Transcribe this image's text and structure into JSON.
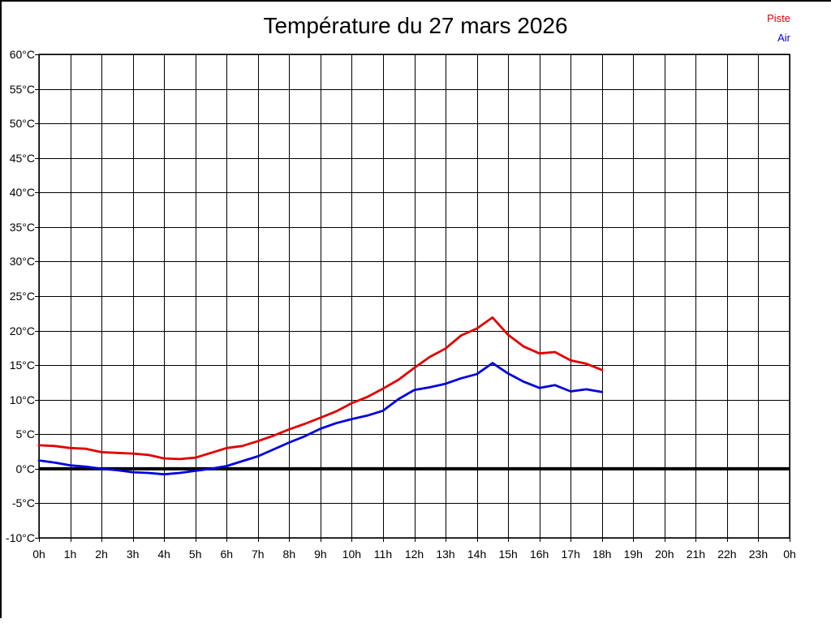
{
  "chart_data": {
    "type": "line",
    "title": "Température du 27 mars 2026",
    "xlim": [
      0,
      24
    ],
    "ylim": [
      -10,
      60
    ],
    "y_tick_step": 5,
    "grid": true,
    "zero_line": true,
    "legend_position": "top-right",
    "x_tick_labels": [
      "0h",
      "1h",
      "2h",
      "3h",
      "4h",
      "5h",
      "6h",
      "7h",
      "8h",
      "9h",
      "10h",
      "11h",
      "12h",
      "13h",
      "14h",
      "15h",
      "16h",
      "17h",
      "18h",
      "19h",
      "20h",
      "21h",
      "22h",
      "23h",
      "0h"
    ],
    "y_tick_labels": [
      "60°C",
      "55°C",
      "50°C",
      "45°C",
      "40°C",
      "35°C",
      "30°C",
      "25°C",
      "20°C",
      "15°C",
      "10°C",
      "5°C",
      "0°C",
      "-5°C",
      "-10°C"
    ],
    "legend": [
      {
        "label": "Piste",
        "color": "#e00000"
      },
      {
        "label": "Air",
        "color": "#0000e0"
      }
    ],
    "series": [
      {
        "name": "Piste",
        "color": "#e00000",
        "x": [
          0,
          0.5,
          1,
          1.5,
          2,
          2.5,
          3,
          3.5,
          4,
          4.5,
          5,
          5.5,
          6,
          6.5,
          7,
          7.5,
          8,
          8.5,
          9,
          9.5,
          10,
          10.5,
          11,
          11.5,
          12,
          12.5,
          13,
          13.5,
          14,
          14.5,
          15,
          15.5,
          16,
          16.5,
          17,
          17.5,
          18
        ],
        "values": [
          3.4,
          3.3,
          3.0,
          2.9,
          2.4,
          2.3,
          2.2,
          2.0,
          1.5,
          1.4,
          1.6,
          2.3,
          3.0,
          3.3,
          4.0,
          4.8,
          5.7,
          6.5,
          7.4,
          8.3,
          9.5,
          10.4,
          11.6,
          12.9,
          14.6,
          16.2,
          17.4,
          19.3,
          20.3,
          21.9,
          19.4,
          17.7,
          16.7,
          16.9,
          15.7,
          15.2,
          14.3
        ]
      },
      {
        "name": "Air",
        "color": "#0000e0",
        "x": [
          0,
          0.5,
          1,
          1.5,
          2,
          2.5,
          3,
          3.5,
          4,
          4.5,
          5,
          5.5,
          6,
          6.5,
          7,
          7.5,
          8,
          8.5,
          9,
          9.5,
          10,
          10.5,
          11,
          11.5,
          12,
          12.5,
          13,
          13.5,
          14,
          14.5,
          15,
          15.5,
          16,
          16.5,
          17,
          17.5,
          18
        ],
        "values": [
          1.2,
          0.9,
          0.5,
          0.3,
          0.0,
          -0.2,
          -0.5,
          -0.6,
          -0.8,
          -0.6,
          -0.3,
          0.0,
          0.4,
          1.1,
          1.8,
          2.8,
          3.8,
          4.7,
          5.8,
          6.6,
          7.2,
          7.7,
          8.4,
          10.1,
          11.4,
          11.8,
          12.3,
          13.1,
          13.7,
          15.3,
          13.8,
          12.6,
          11.7,
          12.1,
          11.2,
          11.5,
          11.1
        ]
      }
    ]
  }
}
